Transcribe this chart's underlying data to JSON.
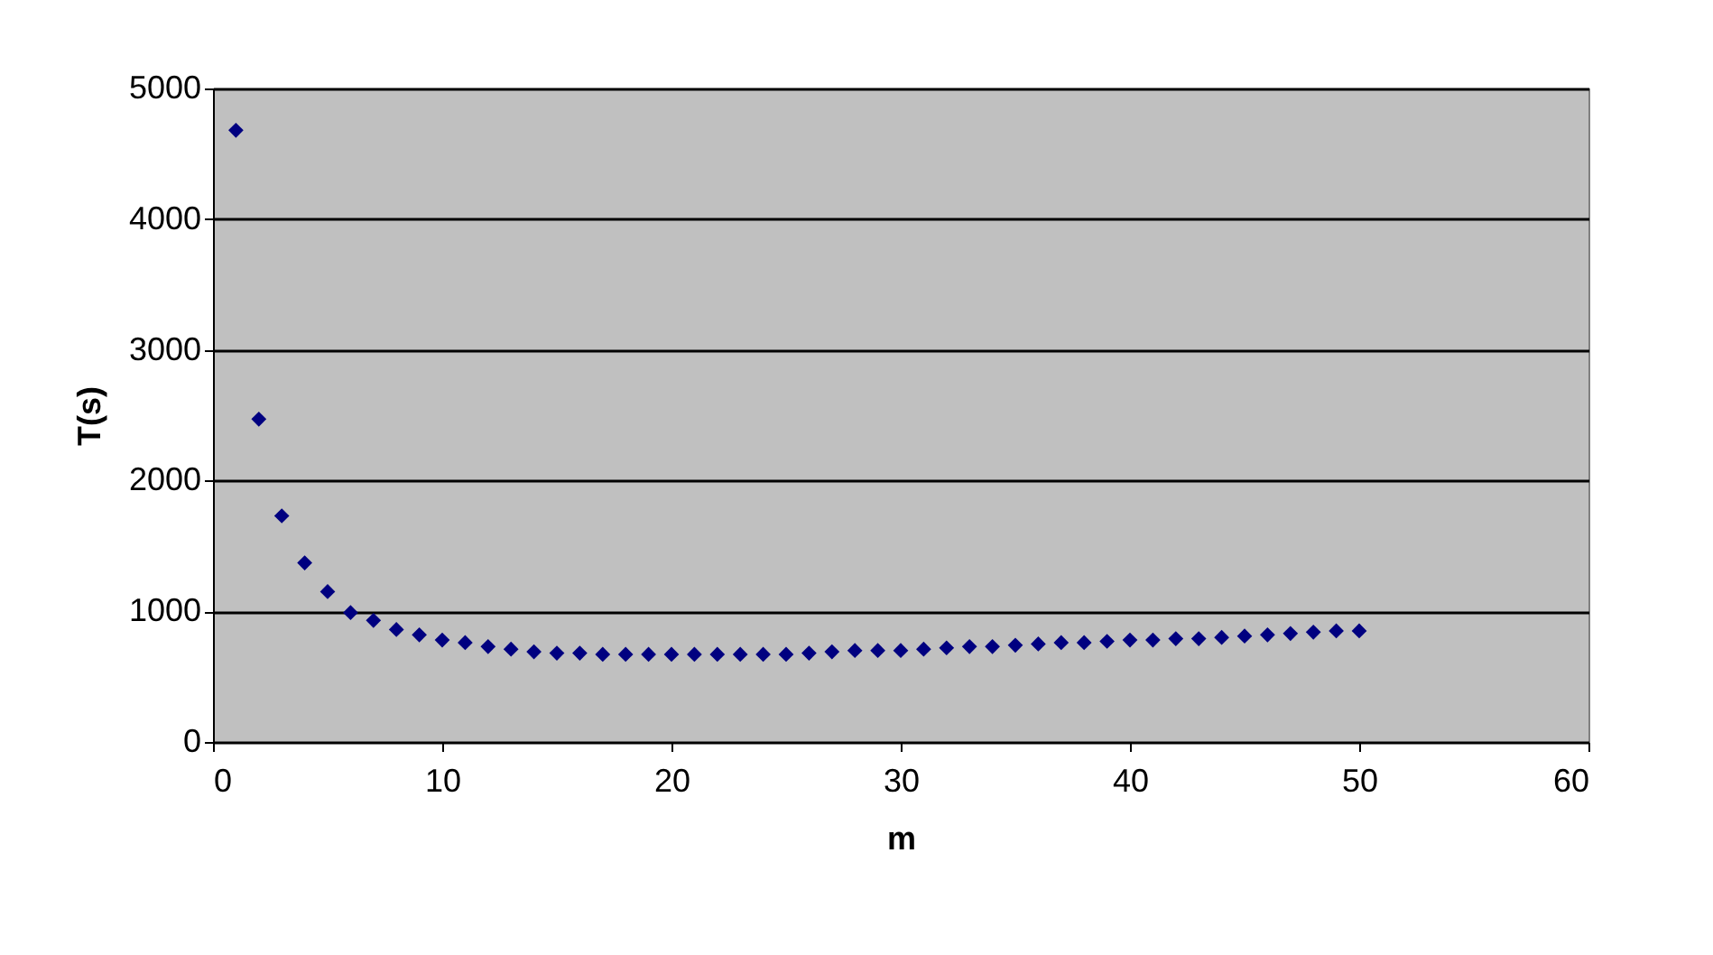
{
  "chart_data": {
    "type": "scatter",
    "xlabel": "m",
    "ylabel": "T(s)",
    "x": [
      1,
      2,
      3,
      4,
      5,
      6,
      7,
      8,
      9,
      10,
      11,
      12,
      13,
      14,
      15,
      16,
      17,
      18,
      19,
      20,
      21,
      22,
      23,
      24,
      25,
      26,
      27,
      28,
      29,
      30,
      31,
      32,
      33,
      34,
      35,
      36,
      37,
      38,
      39,
      40,
      41,
      42,
      43,
      44,
      45,
      46,
      47,
      48,
      49,
      50
    ],
    "series": [
      {
        "color": "#000080",
        "values": [
          4680,
          2470,
          1730,
          1370,
          1150,
          990,
          930,
          860,
          820,
          780,
          760,
          730,
          710,
          690,
          680,
          680,
          670,
          670,
          670,
          670,
          670,
          670,
          670,
          670,
          670,
          680,
          690,
          700,
          700,
          700,
          710,
          720,
          730,
          730,
          740,
          750,
          760,
          760,
          770,
          780,
          780,
          790,
          790,
          800,
          810,
          820,
          830,
          840,
          850,
          850
        ]
      }
    ],
    "xlim": [
      0,
      60
    ],
    "xticks": [
      0,
      10,
      20,
      30,
      40,
      50,
      60
    ],
    "ylim": [
      0,
      5000
    ],
    "yticks": [
      0,
      1000,
      2000,
      3000,
      4000,
      5000
    ],
    "grid": "y",
    "marker": "diamond",
    "legend": false
  }
}
